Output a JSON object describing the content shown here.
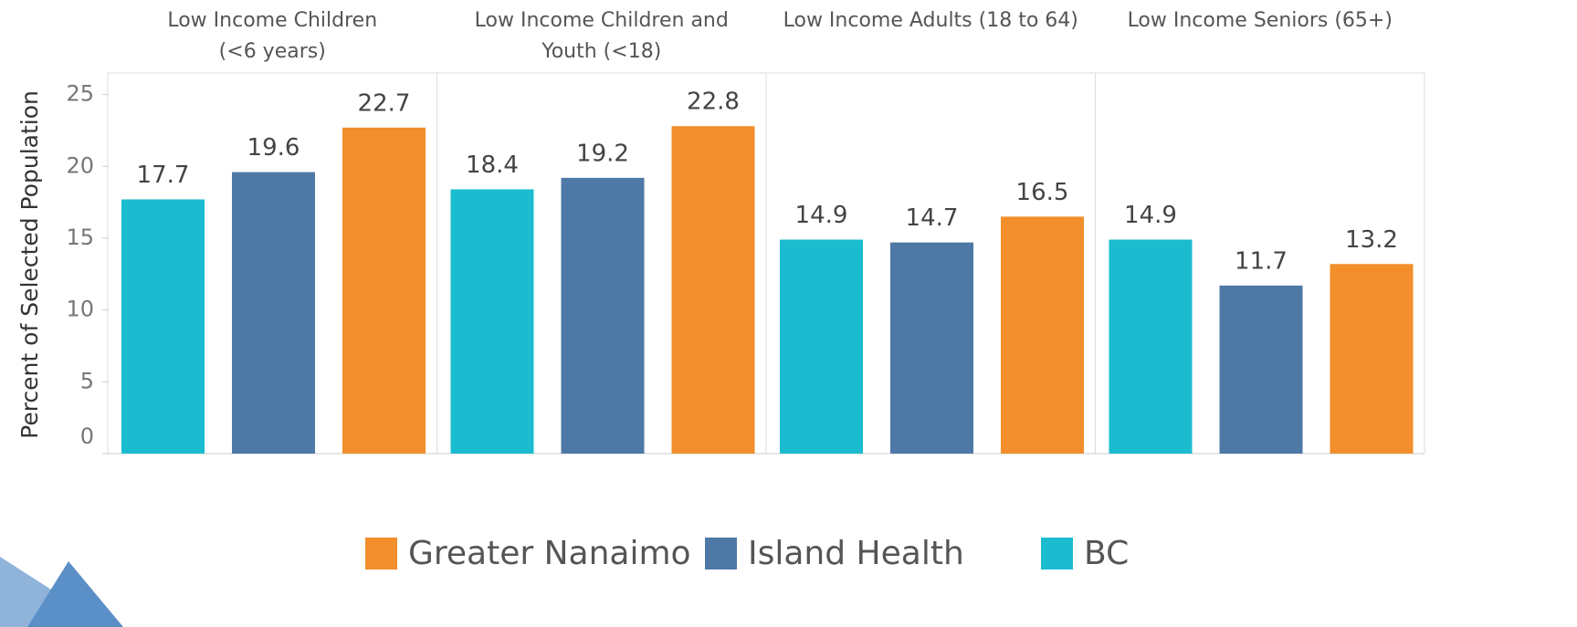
{
  "chart_data": {
    "type": "bar",
    "y_label": "Percent of Selected Population",
    "categories": [
      "Low Income Children\n(<6 years)",
      "Low Income Children and\nYouth (<18)",
      "Low Income Adults (18 to 64)",
      "Low Income Seniors (65+)"
    ],
    "series": [
      {
        "name": "BC",
        "color": "#1bbccf",
        "values": [
          17.7,
          18.4,
          14.9,
          14.9
        ]
      },
      {
        "name": "Island Health",
        "color": "#4e78a6",
        "values": [
          19.6,
          19.2,
          14.7,
          11.7
        ]
      },
      {
        "name": "Greater Nanaimo",
        "color": "#f28e2b",
        "values": [
          22.7,
          22.8,
          16.5,
          13.2
        ]
      }
    ],
    "ylim": [
      0,
      26.5
    ],
    "yticks": [
      0,
      5,
      10,
      15,
      20,
      25
    ],
    "grid": false
  }
}
